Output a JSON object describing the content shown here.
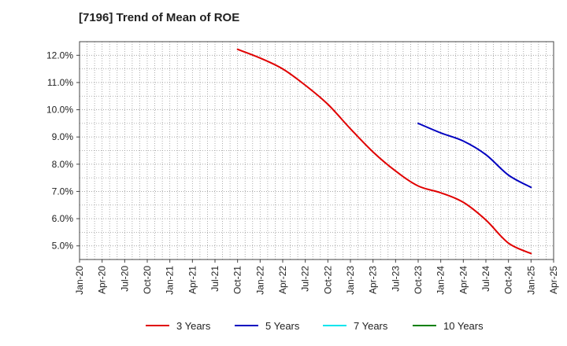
{
  "chart_data": {
    "type": "line",
    "title": "[7196]  Trend of Mean of ROE",
    "xlabel": "",
    "ylabel": "",
    "x_ticks": [
      "Jan-20",
      "Apr-20",
      "Jul-20",
      "Oct-20",
      "Jan-21",
      "Apr-21",
      "Jul-21",
      "Oct-21",
      "Jan-22",
      "Apr-22",
      "Jul-22",
      "Oct-22",
      "Jan-23",
      "Apr-23",
      "Jul-23",
      "Oct-23",
      "Jan-24",
      "Apr-24",
      "Jul-24",
      "Oct-24",
      "Jan-25",
      "Apr-25"
    ],
    "y_ticks": [
      5.0,
      6.0,
      7.0,
      8.0,
      9.0,
      10.0,
      11.0,
      12.0
    ],
    "y_tick_labels": [
      "5.0%",
      "6.0%",
      "7.0%",
      "8.0%",
      "9.0%",
      "10.0%",
      "11.0%",
      "12.0%"
    ],
    "ylim": [
      4.5,
      12.5
    ],
    "grid": true,
    "legend_position": "bottom",
    "series": [
      {
        "name": "3 Years",
        "color": "#e00000",
        "points": [
          [
            "Oct-21",
            12.22
          ],
          [
            "Jan-22",
            11.9
          ],
          [
            "Apr-22",
            11.5
          ],
          [
            "Jul-22",
            10.9
          ],
          [
            "Oct-22",
            10.2
          ],
          [
            "Jan-23",
            9.3
          ],
          [
            "Apr-23",
            8.45
          ],
          [
            "Jul-23",
            7.75
          ],
          [
            "Oct-23",
            7.2
          ],
          [
            "Jan-24",
            6.95
          ],
          [
            "Apr-24",
            6.6
          ],
          [
            "Jul-24",
            5.95
          ],
          [
            "Oct-24",
            5.1
          ],
          [
            "Jan-25",
            4.72
          ]
        ]
      },
      {
        "name": "5 Years",
        "color": "#0000c0",
        "points": [
          [
            "Oct-23",
            9.5
          ],
          [
            "Jan-24",
            9.15
          ],
          [
            "Apr-24",
            8.85
          ],
          [
            "Jul-24",
            8.35
          ],
          [
            "Oct-24",
            7.6
          ],
          [
            "Jan-25",
            7.15
          ]
        ]
      },
      {
        "name": "7 Years",
        "color": "#00e5ee",
        "points": []
      },
      {
        "name": "10 Years",
        "color": "#008000",
        "points": []
      }
    ]
  }
}
